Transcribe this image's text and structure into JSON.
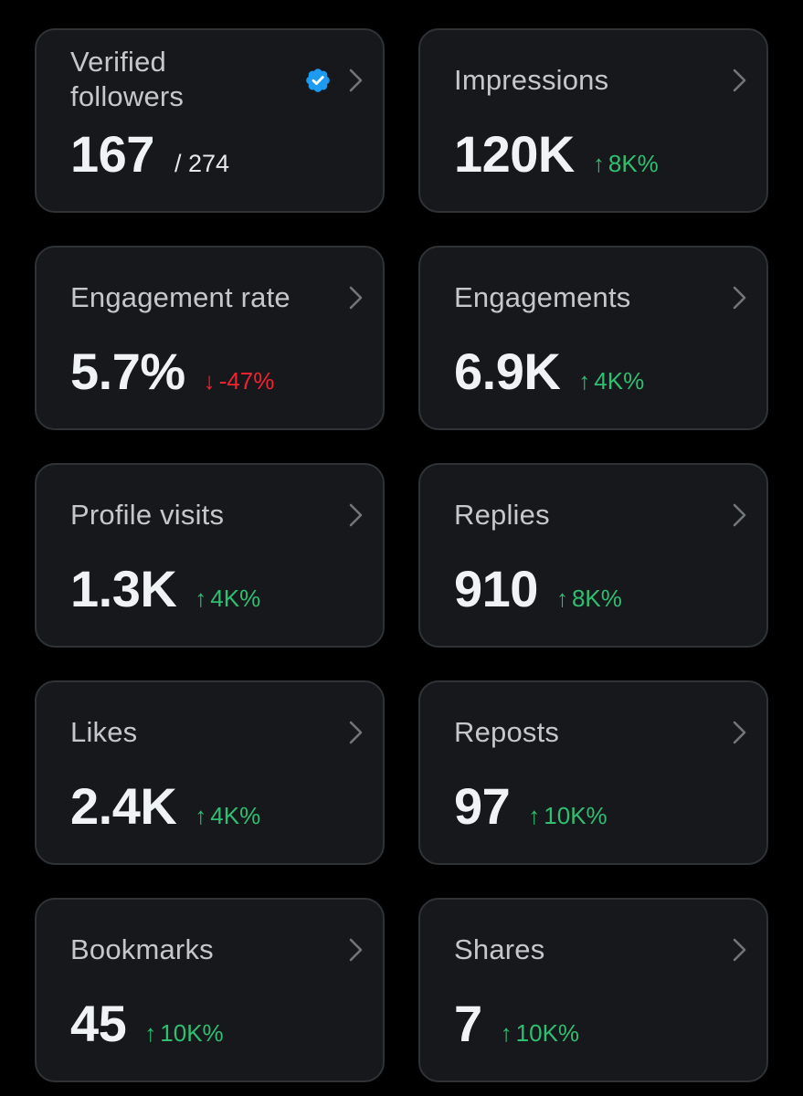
{
  "colors": {
    "background": "#000000",
    "card": "#16181c",
    "card_border": "#2f3336",
    "positive": "#2fbf71",
    "negative": "#f4212e",
    "verified": "#1d9bf0"
  },
  "cards": [
    {
      "title": "Verified followers",
      "value": "167",
      "total": "/ 274",
      "icon": "verified-badge-icon"
    },
    {
      "title": "Impressions",
      "value": "120K",
      "arrow": "↑",
      "change": "8K%"
    },
    {
      "title": "Engagement rate",
      "value": "5.7%",
      "arrow": "↓",
      "change": "-47%"
    },
    {
      "title": "Engagements",
      "value": "6.9K",
      "arrow": "↑",
      "change": "4K%"
    },
    {
      "title": "Profile visits",
      "value": "1.3K",
      "arrow": "↑",
      "change": "4K%"
    },
    {
      "title": "Replies",
      "value": "910",
      "arrow": "↑",
      "change": "8K%"
    },
    {
      "title": "Likes",
      "value": "2.4K",
      "arrow": "↑",
      "change": "4K%"
    },
    {
      "title": "Reposts",
      "value": "97",
      "arrow": "↑",
      "change": "10K%"
    },
    {
      "title": "Bookmarks",
      "value": "45",
      "arrow": "↑",
      "change": "10K%"
    },
    {
      "title": "Shares",
      "value": "7",
      "arrow": "↑",
      "change": "10K%"
    }
  ]
}
